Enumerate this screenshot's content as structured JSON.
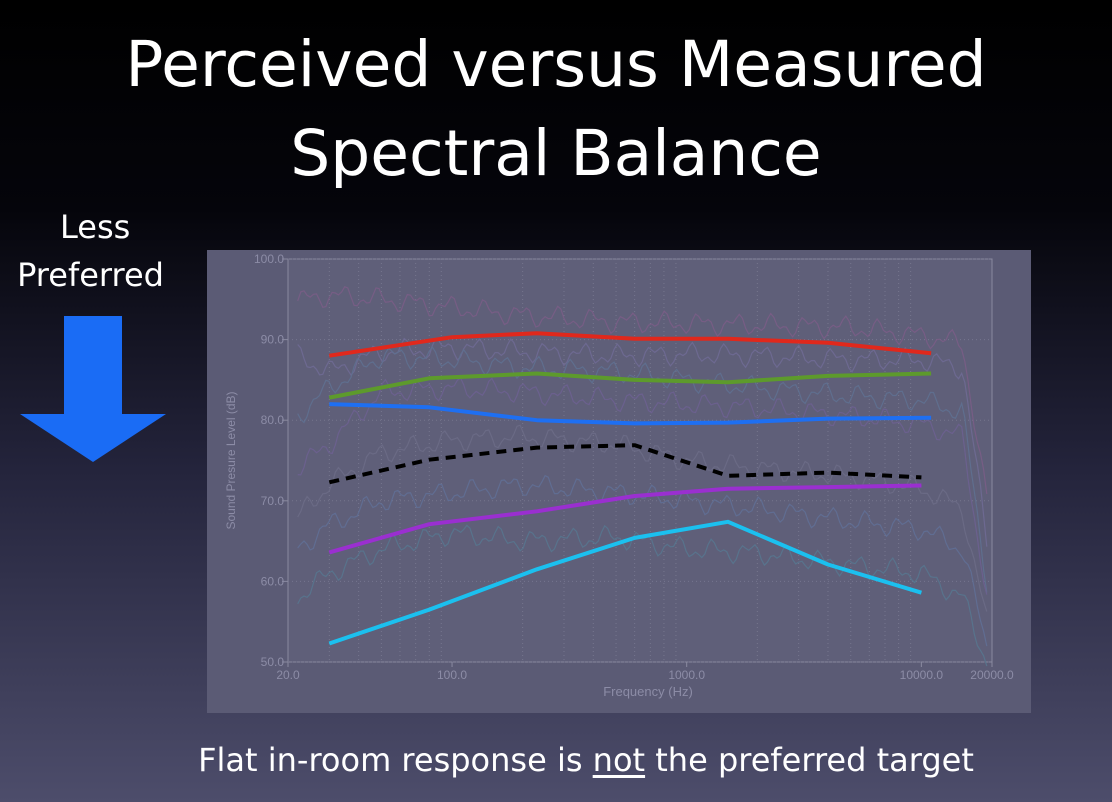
{
  "slide": {
    "title_line1": "Perceived versus Measured",
    "title_line2": "Spectral Balance",
    "side_label_line1": "Less",
    "side_label_line2": "Preferred",
    "caption_before": "Flat in-room response is ",
    "caption_emphasis": "not",
    "caption_after": " the preferred target"
  },
  "colors": {
    "arrow": "#1a6cf5",
    "plot_bg": "#5b5b75",
    "background_measured": "#7c6a8c"
  },
  "chart_data": {
    "type": "line",
    "xscale": "log",
    "xlabel": "Frequency (Hz)",
    "ylabel": "Sound Presure Level (dB)",
    "xlim": [
      20,
      20000
    ],
    "ylim": [
      50,
      100
    ],
    "x_ticks": [
      "20.0",
      "100.0",
      "1000.0",
      "10000.0",
      "20000.0"
    ],
    "y_ticks": [
      "50.0",
      "60.0",
      "70.0",
      "80.0",
      "90.0",
      "100.0"
    ],
    "series": [
      {
        "color": "#e0281c",
        "style": "solid",
        "x": [
          30,
          100,
          230,
          600,
          1500,
          4000,
          11000
        ],
        "y": [
          88,
          90.3,
          90.8,
          90.1,
          90.1,
          89.6,
          88.3
        ]
      },
      {
        "color": "#5d9a2c",
        "style": "solid",
        "x": [
          30,
          80,
          230,
          600,
          1500,
          4000,
          11000
        ],
        "y": [
          82.8,
          85.2,
          85.8,
          85.0,
          84.7,
          85.5,
          85.8
        ]
      },
      {
        "color": "#1e6ff2",
        "style": "solid",
        "x": [
          30,
          80,
          230,
          600,
          1500,
          4000,
          11000
        ],
        "y": [
          82.0,
          81.6,
          80.0,
          79.6,
          79.7,
          80.2,
          80.3
        ]
      },
      {
        "color": "#000000",
        "style": "dashed",
        "x": [
          30,
          80,
          230,
          600,
          1500,
          4000,
          10000
        ],
        "y": [
          72.3,
          75.1,
          76.6,
          76.9,
          73.1,
          73.5,
          72.9
        ]
      },
      {
        "color": "#9a2fd0",
        "style": "solid",
        "x": [
          30,
          80,
          230,
          600,
          1500,
          4000,
          10000
        ],
        "y": [
          63.6,
          67.1,
          68.7,
          70.6,
          71.5,
          71.7,
          71.9
        ]
      },
      {
        "color": "#1bc0ef",
        "style": "solid",
        "x": [
          30,
          80,
          230,
          600,
          1500,
          4000,
          10000
        ],
        "y": [
          52.3,
          56.5,
          61.5,
          65.4,
          67.4,
          62.1,
          58.6
        ]
      }
    ],
    "background_curves": [
      {
        "x": [
          22,
          30,
          50,
          100,
          200,
          500,
          1000,
          2000,
          5000,
          10000,
          15000,
          19000
        ],
        "y": [
          94.8,
          95.5,
          95.0,
          94.0,
          93.0,
          92.2,
          92.0,
          91.8,
          91.5,
          90.5,
          89.5,
          70.0
        ]
      },
      {
        "x": [
          22,
          30,
          50,
          100,
          200,
          500,
          1000,
          2000,
          5000,
          10000,
          15000,
          19000
        ],
        "y": [
          88.0,
          86.0,
          88.5,
          89.0,
          88.5,
          88.0,
          88.2,
          88.0,
          87.5,
          87.5,
          86.5,
          65.0
        ]
      },
      {
        "x": [
          22,
          30,
          50,
          100,
          200,
          500,
          1000,
          2000,
          5000,
          10000,
          15000,
          19000
        ],
        "y": [
          80.5,
          84.0,
          88.0,
          87.5,
          86.5,
          86.0,
          85.0,
          84.0,
          83.0,
          82.5,
          81.0,
          60.0
        ]
      },
      {
        "x": [
          22,
          30,
          50,
          100,
          200,
          500,
          1000,
          2000,
          5000,
          10000,
          15000,
          19000
        ],
        "y": [
          74.0,
          77.0,
          83.5,
          84.0,
          83.5,
          82.5,
          82.0,
          81.5,
          80.5,
          79.5,
          78.0,
          58.0
        ]
      },
      {
        "x": [
          22,
          30,
          50,
          100,
          200,
          500,
          1000,
          2000,
          5000,
          10000,
          15000,
          19000
        ],
        "y": [
          68.0,
          72.0,
          76.0,
          77.5,
          78.0,
          77.0,
          75.0,
          74.0,
          73.0,
          71.5,
          69.0,
          55.0
        ]
      },
      {
        "x": [
          22,
          30,
          50,
          100,
          200,
          500,
          1000,
          2000,
          5000,
          10000,
          15000,
          19000
        ],
        "y": [
          64.0,
          67.0,
          70.0,
          71.0,
          72.0,
          71.0,
          70.0,
          69.0,
          67.5,
          66.5,
          64.0,
          52.0
        ]
      },
      {
        "x": [
          22,
          30,
          50,
          100,
          200,
          500,
          1000,
          2000,
          5000,
          10000,
          15000,
          19000
        ],
        "y": [
          58.0,
          61.0,
          64.0,
          66.0,
          65.0,
          65.5,
          64.0,
          63.5,
          62.0,
          61.0,
          58.0,
          50.0
        ]
      }
    ]
  }
}
